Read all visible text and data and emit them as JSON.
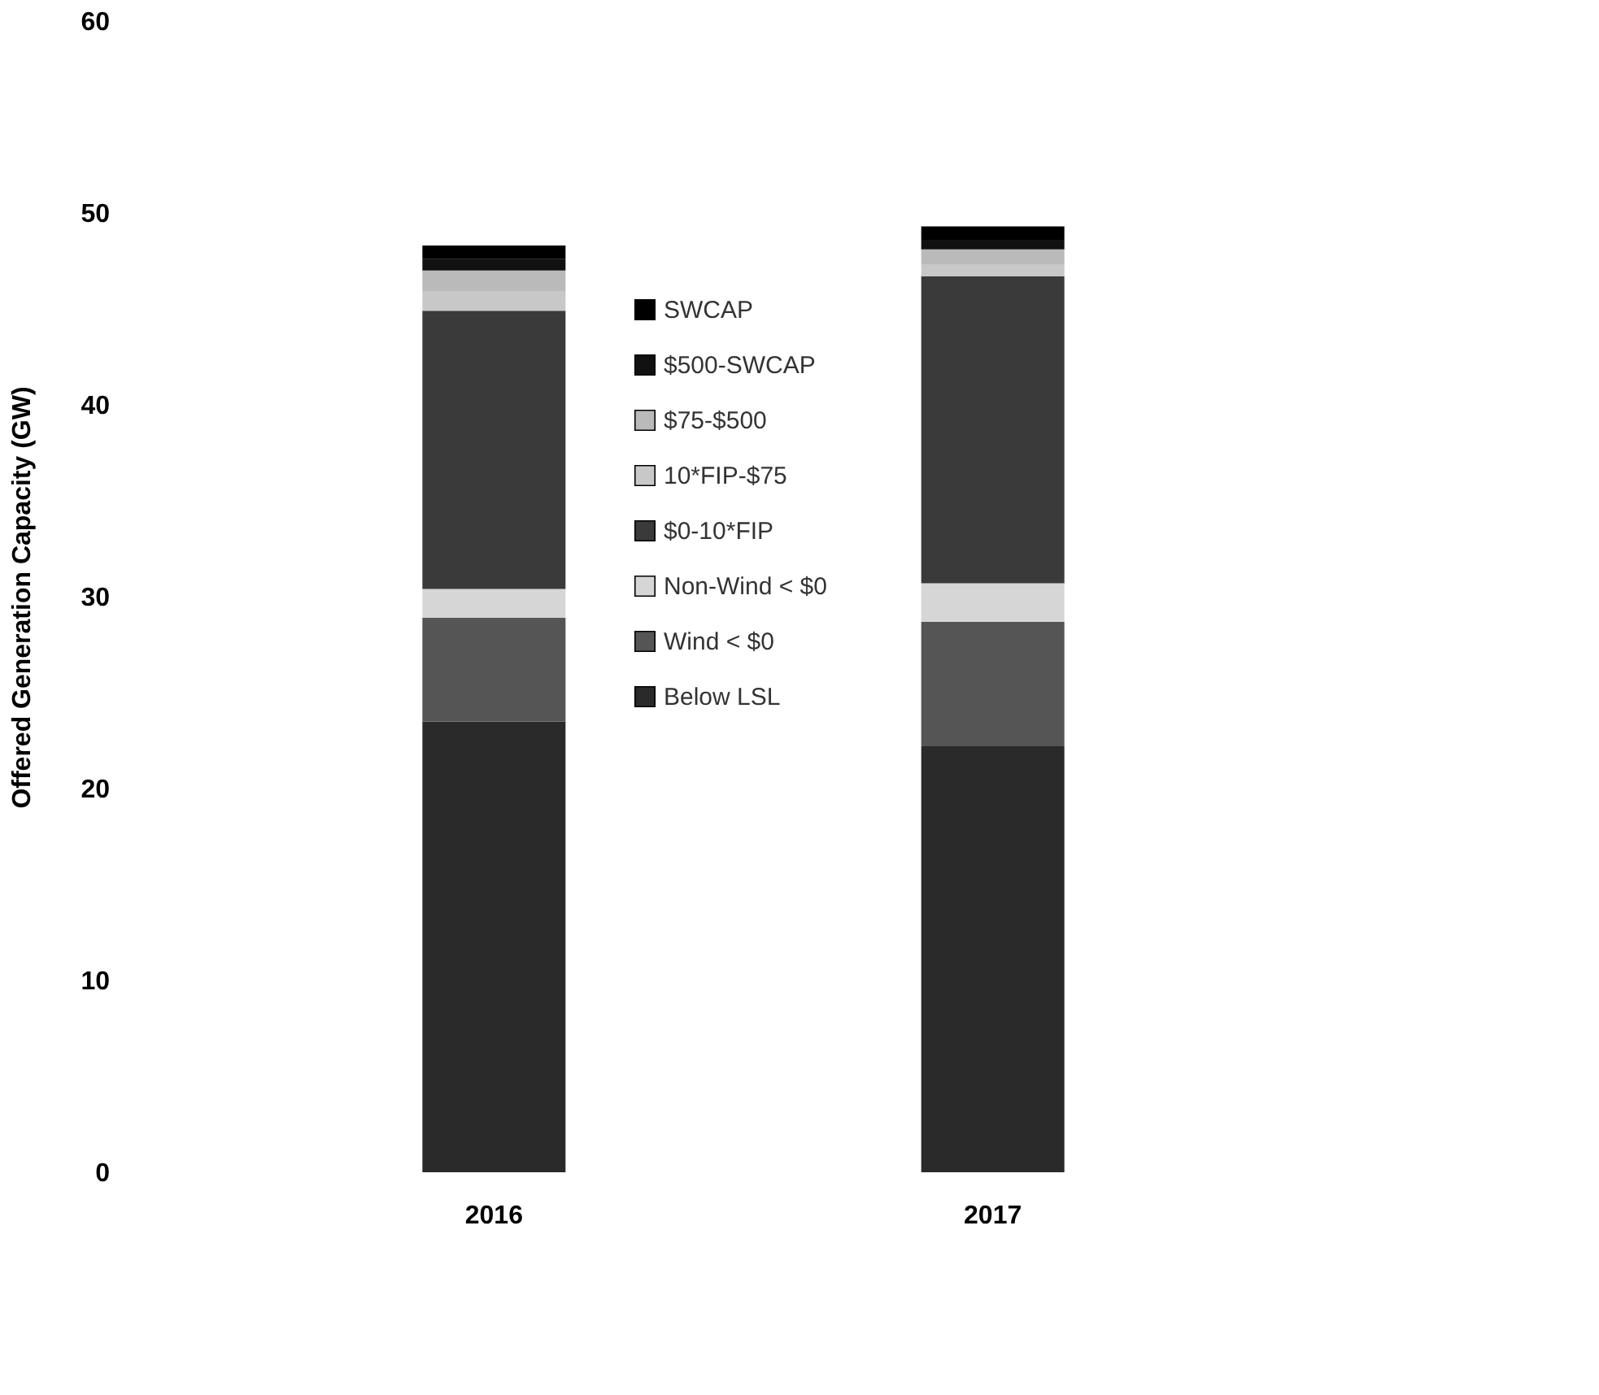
{
  "chart_data": {
    "type": "bar",
    "stacked": true,
    "ylabel": "Offered Generation Capacity (GW)",
    "categories": [
      "2016",
      "2017"
    ],
    "ylim": [
      0,
      60
    ],
    "yticks": [
      0,
      10,
      20,
      30,
      40,
      50,
      60
    ],
    "grid": false,
    "legend": "center",
    "series": [
      {
        "name": "Below LSL",
        "color": "#2a2a2a",
        "values": [
          23.5,
          22.2
        ]
      },
      {
        "name": "Wind < $0",
        "color": "#555555",
        "values": [
          5.4,
          6.5
        ]
      },
      {
        "name": "Non-Wind < $0",
        "color": "#d6d6d6",
        "values": [
          1.5,
          2.0
        ]
      },
      {
        "name": "$0-10*FIP",
        "color": "#3a3a3a",
        "values": [
          14.5,
          16.0
        ]
      },
      {
        "name": "10*FIP-$75",
        "color": "#c8c8c8",
        "values": [
          1.0,
          0.6
        ]
      },
      {
        "name": "$75-$500",
        "color": "#bababa",
        "values": [
          1.1,
          0.8
        ]
      },
      {
        "name": "$500-SWCAP",
        "color": "#111111",
        "values": [
          0.6,
          0.5
        ]
      },
      {
        "name": "SWCAP",
        "color": "#000000",
        "values": [
          0.7,
          0.7
        ]
      }
    ]
  }
}
